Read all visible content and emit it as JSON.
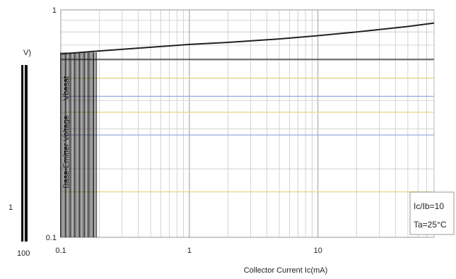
{
  "chart_data": {
    "type": "line",
    "title": "",
    "xlabel": "Collector Current   Ic(mA)",
    "ylabel": "Base-Emitter Voltage",
    "ylabel_fragment": "Vbesat",
    "ylabel_unit_fragment": "V)",
    "x_scale": "log",
    "y_scale": "log",
    "xlim": [
      0.1,
      80
    ],
    "ylim": [
      0.1,
      1
    ],
    "x_ticks": [
      {
        "value": 0.1,
        "label": "0.1"
      },
      {
        "value": 1,
        "label": "1"
      },
      {
        "value": 10,
        "label": "10"
      }
    ],
    "y_ticks": [
      {
        "value": 1,
        "label": "1"
      },
      {
        "value": 0.1,
        "label": "0.1"
      }
    ],
    "grid": true,
    "series": [
      {
        "color": "#222222",
        "x": [
          0.1,
          0.2,
          0.5,
          1,
          2,
          5,
          10,
          20,
          50,
          80
        ],
        "y": [
          0.64,
          0.66,
          0.685,
          0.705,
          0.72,
          0.745,
          0.77,
          0.8,
          0.845,
          0.875
        ]
      }
    ],
    "annotations": [
      {
        "text": "Ic/Ib=10",
        "position": "lower-right"
      },
      {
        "text": "Ta=25°C",
        "position": "lower-right"
      }
    ],
    "side_fragments": {
      "left_top": "V)",
      "left_mid": "1",
      "left_bottom": "100"
    }
  }
}
